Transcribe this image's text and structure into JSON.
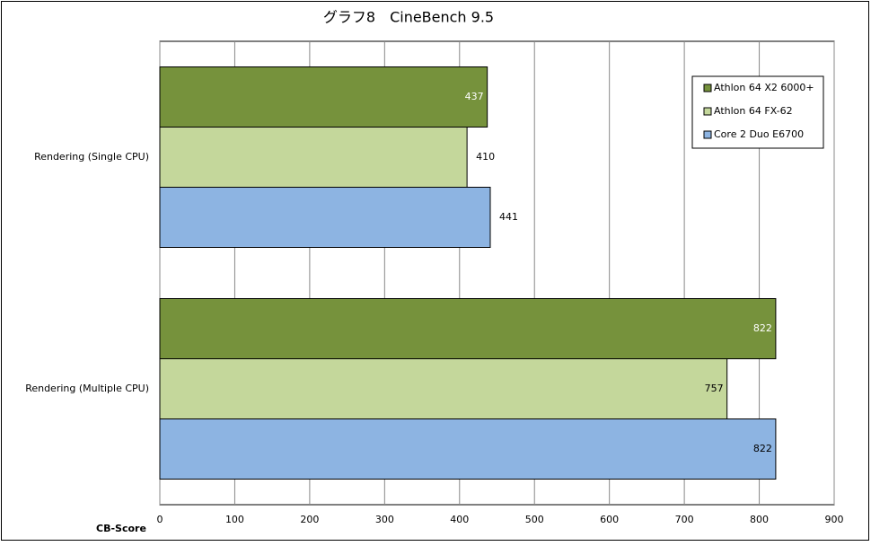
{
  "chart_data": {
    "type": "hbar",
    "title": "グラフ8　CineBench 9.5",
    "x_label": "CB-Score",
    "categories": [
      "Rendering (Single CPU)",
      "Rendering (Multiple CPU)"
    ],
    "series": [
      {
        "name": "Athlon 64 X2 6000+",
        "color": "#76923c",
        "values": [
          437,
          822
        ]
      },
      {
        "name": "Athlon 64 FX-62",
        "color": "#c4d79b",
        "values": [
          410,
          757
        ]
      },
      {
        "name": "Core 2 Duo E6700",
        "color": "#8db4e2",
        "values": [
          441,
          822
        ]
      }
    ],
    "xlim": [
      0,
      900
    ],
    "xticks": [
      0,
      100,
      200,
      300,
      400,
      500,
      600,
      700,
      800,
      900
    ],
    "grid": true,
    "legend": "top-right"
  }
}
